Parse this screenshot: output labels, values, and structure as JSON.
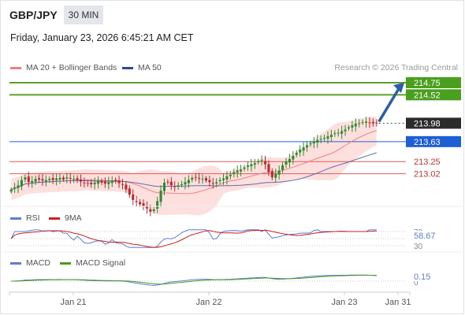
{
  "header": {
    "symbol": "GBP/JPY",
    "timeframe": "30 MIN",
    "datetime": "Friday, January 23, 2026 6:45:21 AM CET"
  },
  "main_legend": {
    "items": [
      {
        "label": "MA 20 + Bollinger Bands",
        "color": "#f08080"
      },
      {
        "label": "MA 50",
        "color": "#2a4b8d"
      }
    ],
    "credit": "Research © 2026 Trading Central"
  },
  "colors": {
    "up_candle": "#2e8b2e",
    "down_candle": "#c0282d",
    "bollinger_fill": "#fde0de",
    "ma20": "#f08080",
    "ma50": "#5a6fb0",
    "resistance": "#5aa02c",
    "pivot": "#1f5fd6",
    "support": "#e05a5a",
    "arrow": "#2a5fa8",
    "rsi": "#5b7fd6",
    "rsi_ma": "#cc2020",
    "macd": "#5b7fd6",
    "macd_signal": "#4a9a1c"
  },
  "chart_data": [
    {
      "type": "candlestick",
      "panel": "price",
      "ylim": [
        212.4,
        214.9
      ],
      "x_ticks": [
        "Jan 21",
        "Jan 22",
        "Jan 23",
        "Jan 31"
      ],
      "levels": [
        {
          "label": "214.75",
          "value": 214.75,
          "kind": "resistance"
        },
        {
          "label": "214.52",
          "value": 214.52,
          "kind": "resistance"
        },
        {
          "label": "213.98",
          "value": 213.98,
          "kind": "last"
        },
        {
          "label": "213.63",
          "value": 213.63,
          "kind": "pivot"
        },
        {
          "label": "213.25",
          "value": 213.25,
          "kind": "support"
        },
        {
          "label": "213.02",
          "value": 213.02,
          "kind": "support"
        }
      ],
      "series": [
        {
          "name": "MA 20 + Bollinger Bands"
        },
        {
          "name": "MA 50"
        }
      ],
      "close": [
        212.72,
        212.76,
        212.8,
        212.9,
        212.95,
        212.86,
        212.88,
        212.92,
        212.91,
        212.89,
        212.9,
        212.92,
        212.9,
        212.93,
        212.94,
        212.91,
        212.95,
        212.93,
        212.92,
        212.9,
        212.87,
        212.85,
        212.83,
        212.82,
        212.85,
        212.88,
        212.85,
        212.83,
        212.86,
        212.89,
        212.88,
        212.84,
        212.82,
        212.72,
        212.62,
        212.52,
        212.48,
        212.44,
        212.4,
        212.36,
        212.3,
        212.34,
        212.5,
        212.7,
        212.85,
        212.86,
        212.8,
        212.78,
        212.8,
        212.82,
        212.86,
        212.9,
        212.94,
        212.95,
        212.93,
        212.92,
        212.89,
        212.86,
        212.84,
        212.86,
        212.9,
        212.93,
        212.97,
        213.0,
        213.05,
        213.08,
        213.1,
        213.14,
        213.18,
        213.2,
        213.22,
        213.26,
        213.28,
        213.2,
        213.05,
        212.95,
        213.02,
        213.08,
        213.18,
        213.25,
        213.3,
        213.36,
        213.42,
        213.48,
        213.52,
        213.56,
        213.6,
        213.63,
        213.66,
        213.68,
        213.7,
        213.73,
        213.76,
        213.79,
        213.8,
        213.83,
        213.86,
        213.9,
        213.94,
        213.97,
        213.98,
        214.0,
        214.01,
        213.99,
        213.98,
        213.98
      ]
    },
    {
      "type": "line",
      "panel": "RSI",
      "series": [
        {
          "name": "RSI"
        },
        {
          "name": "9MA"
        }
      ],
      "ylim": [
        30,
        70
      ],
      "y_ticks": [
        70,
        30
      ],
      "last_value": 58.67
    },
    {
      "type": "line",
      "panel": "MACD",
      "series": [
        {
          "name": "MACD"
        },
        {
          "name": "MACD Signal"
        }
      ],
      "y_ticks": [
        0
      ],
      "last_value": 0.15
    }
  ],
  "rsi_legend": {
    "rsi": "RSI",
    "ma": "9MA"
  },
  "macd_legend": {
    "macd": "MACD",
    "signal": "MACD Signal"
  },
  "rsi_labels": {
    "top": "70",
    "bottom": "30",
    "value": "58.67"
  },
  "macd_labels": {
    "zero": "0",
    "value": "0.15"
  }
}
